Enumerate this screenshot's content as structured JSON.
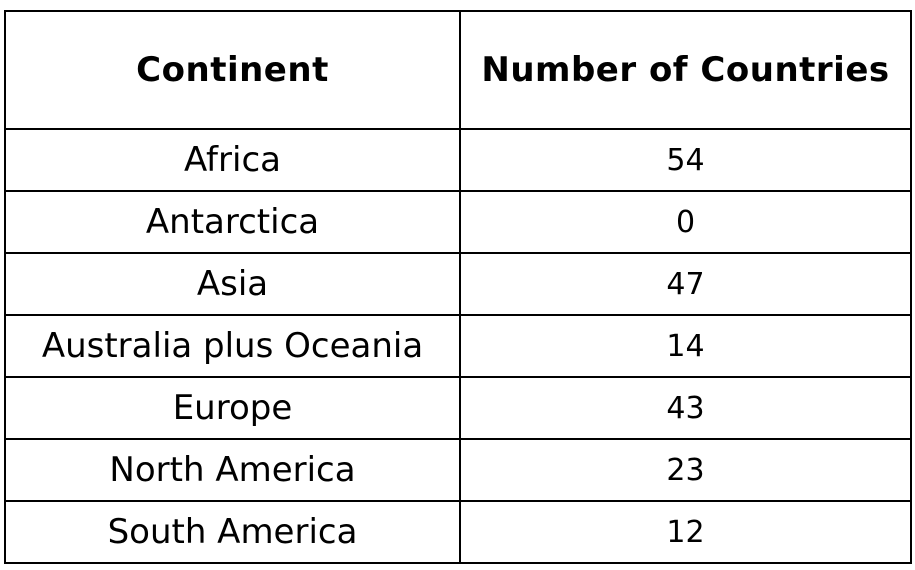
{
  "chart_data": {
    "type": "table",
    "columns": [
      "Continent",
      "Number of Countries"
    ],
    "rows": [
      {
        "continent": "Africa",
        "count": "54"
      },
      {
        "continent": "Antarctica",
        "count": "0"
      },
      {
        "continent": "Asia",
        "count": "47"
      },
      {
        "continent": "Australia plus Oceania",
        "count": "14"
      },
      {
        "continent": "Europe",
        "count": "43"
      },
      {
        "continent": "North America",
        "count": "23"
      },
      {
        "continent": "South America",
        "count": "12"
      }
    ]
  }
}
